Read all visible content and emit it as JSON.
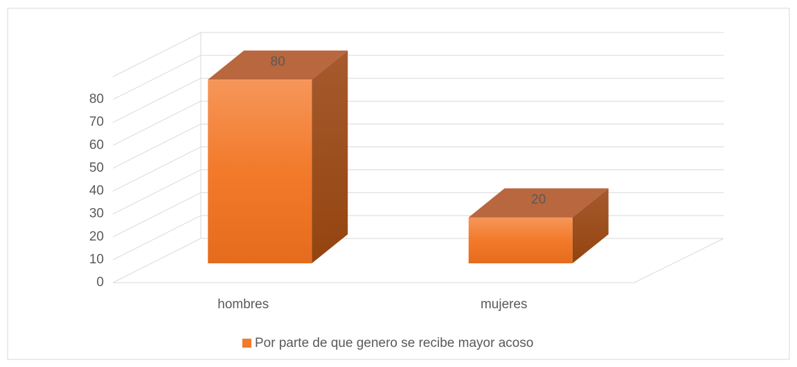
{
  "chart_data": {
    "type": "bar",
    "categories": [
      "hombres",
      "mujeres"
    ],
    "series": [
      {
        "name": "Por parte de que genero se recibe mayor acoso",
        "color": "#f07b2b",
        "values": [
          80,
          20
        ]
      }
    ],
    "ylim": [
      0,
      90
    ],
    "yticks": [
      0,
      10,
      20,
      30,
      40,
      50,
      60,
      70,
      80
    ],
    "grid": true,
    "legend": "bottom"
  }
}
